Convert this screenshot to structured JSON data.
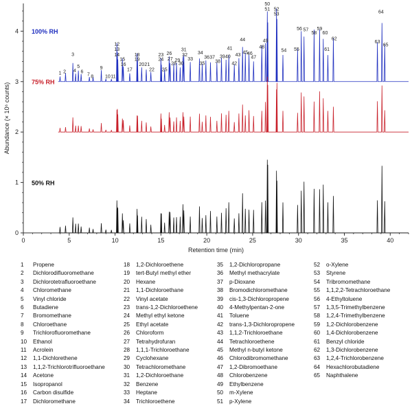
{
  "chart_data": {
    "type": "line",
    "title": "",
    "xlabel": "Retention time (min)",
    "ylabel": "Abundance (× 10⁶ counts)",
    "xlim": [
      0,
      42
    ],
    "ylim": [
      0,
      4.55
    ],
    "x_ticks": [
      0,
      5,
      10,
      15,
      20,
      25,
      30,
      35,
      40
    ],
    "y_ticks": [
      0,
      1,
      2,
      3,
      4
    ],
    "series": [
      {
        "name": "100% RH",
        "color": "#1f2fbf",
        "baseline": 3.0
      },
      {
        "name": "75% RH",
        "color": "#c8202a",
        "baseline": 2.0
      },
      {
        "name": "50% RH",
        "color": "#111111",
        "baseline": 0.0
      }
    ],
    "peaks": [
      {
        "id": "1",
        "t": 4.0,
        "h": 0.12,
        "lx": 4.0,
        "ly": 3.14
      },
      {
        "id": "2",
        "t": 4.6,
        "h": 0.16,
        "lx": 4.5,
        "ly": 3.17
      },
      {
        "id": "3",
        "t": 5.4,
        "h": 0.38,
        "lx": 5.4,
        "ly": 3.51
      },
      {
        "id": "4",
        "t": 5.7,
        "h": 0.18,
        "lx": 5.6,
        "ly": 3.19
      },
      {
        "id": "5",
        "t": 6.0,
        "h": 0.2,
        "lx": 6.0,
        "ly": 3.27
      },
      {
        "id": "6",
        "t": 6.3,
        "h": 0.15,
        "lx": 6.4,
        "ly": 3.17
      },
      {
        "id": "7",
        "t": 7.2,
        "h": 0.1,
        "lx": 7.1,
        "ly": 3.11
      },
      {
        "id": "8",
        "t": 7.6,
        "h": 0.08,
        "lx": 7.5,
        "ly": 3.07
      },
      {
        "id": "9",
        "t": 8.5,
        "h": 0.22,
        "lx": 8.5,
        "ly": 3.24
      },
      {
        "id": "10",
        "t": 9.0,
        "h": 0.06,
        "lx": 9.2,
        "ly": 3.07
      },
      {
        "id": "11",
        "t": 9.6,
        "h": 0.06,
        "lx": 9.8,
        "ly": 3.07
      },
      {
        "id": "12",
        "t": 10.2,
        "h": 0.72,
        "lx": 10.2,
        "ly": 3.71
      },
      {
        "id": "13",
        "t": 10.25,
        "h": 0.6,
        "lx": 10.2,
        "ly": 3.61
      },
      {
        "id": "14",
        "t": 10.3,
        "h": 0.5,
        "lx": 10.2,
        "ly": 3.5
      },
      {
        "id": "15",
        "t": 10.8,
        "h": 0.42,
        "lx": 10.8,
        "ly": 3.41
      },
      {
        "id": "16",
        "t": 10.9,
        "h": 0.3,
        "lx": 10.9,
        "ly": 3.31
      },
      {
        "id": "17",
        "t": 11.6,
        "h": 0.18,
        "lx": 11.6,
        "ly": 3.21
      },
      {
        "id": "18",
        "t": 12.4,
        "h": 0.5,
        "lx": 12.4,
        "ly": 3.5
      },
      {
        "id": "19",
        "t": 12.45,
        "h": 0.4,
        "lx": 12.4,
        "ly": 3.41
      },
      {
        "id": "20",
        "t": 12.9,
        "h": 0.3,
        "lx": 12.9,
        "ly": 3.31
      },
      {
        "id": "21",
        "t": 13.4,
        "h": 0.28,
        "lx": 13.5,
        "ly": 3.31
      },
      {
        "id": "22",
        "t": 13.9,
        "h": 0.18,
        "lx": 14.0,
        "ly": 3.21
      },
      {
        "id": "23",
        "t": 15.0,
        "h": 0.48,
        "lx": 15.0,
        "ly": 3.5
      },
      {
        "id": "24",
        "t": 15.05,
        "h": 0.38,
        "lx": 15.0,
        "ly": 3.41
      },
      {
        "id": "25",
        "t": 15.4,
        "h": 0.22,
        "lx": 15.4,
        "ly": 3.21
      },
      {
        "id": "26",
        "t": 15.9,
        "h": 0.5,
        "lx": 15.9,
        "ly": 3.53
      },
      {
        "id": "27",
        "t": 16.0,
        "h": 0.4,
        "lx": 16.0,
        "ly": 3.42
      },
      {
        "id": "28",
        "t": 16.4,
        "h": 0.32,
        "lx": 16.4,
        "ly": 3.33
      },
      {
        "id": "29",
        "t": 16.7,
        "h": 0.36,
        "lx": 16.8,
        "ly": 3.39
      },
      {
        "id": "30",
        "t": 17.1,
        "h": 0.3,
        "lx": 17.2,
        "ly": 3.33
      },
      {
        "id": "31",
        "t": 17.4,
        "h": 0.58,
        "lx": 17.5,
        "ly": 3.6
      },
      {
        "id": "32",
        "t": 17.5,
        "h": 0.5,
        "lx": 17.6,
        "ly": 3.5
      },
      {
        "id": "33",
        "t": 18.2,
        "h": 0.4,
        "lx": 18.2,
        "ly": 3.42
      },
      {
        "id": "34",
        "t": 19.2,
        "h": 0.52,
        "lx": 19.3,
        "ly": 3.54
      },
      {
        "id": "35",
        "t": 19.5,
        "h": 0.32,
        "lx": 19.5,
        "ly": 3.33
      },
      {
        "id": "36",
        "t": 19.9,
        "h": 0.42,
        "lx": 20.0,
        "ly": 3.45
      },
      {
        "id": "37",
        "t": 20.4,
        "h": 0.42,
        "lx": 20.6,
        "ly": 3.45
      },
      {
        "id": "38",
        "t": 21.1,
        "h": 0.34,
        "lx": 21.2,
        "ly": 3.37
      },
      {
        "id": "39",
        "t": 21.6,
        "h": 0.46,
        "lx": 21.7,
        "ly": 3.47
      },
      {
        "id": "40",
        "t": 22.1,
        "h": 0.46,
        "lx": 22.3,
        "ly": 3.47
      },
      {
        "id": "41",
        "t": 22.4,
        "h": 0.62,
        "lx": 22.5,
        "ly": 3.63
      },
      {
        "id": "42",
        "t": 23.0,
        "h": 0.32,
        "lx": 23.0,
        "ly": 3.33
      },
      {
        "id": "43",
        "t": 23.5,
        "h": 0.48,
        "lx": 23.4,
        "ly": 3.5
      },
      {
        "id": "44",
        "t": 23.9,
        "h": 0.78,
        "lx": 23.9,
        "ly": 3.8
      },
      {
        "id": "45",
        "t": 24.2,
        "h": 0.52,
        "lx": 24.2,
        "ly": 3.55
      },
      {
        "id": "46",
        "t": 24.6,
        "h": 0.55,
        "lx": 24.7,
        "ly": 3.53
      },
      {
        "id": "47",
        "t": 25.1,
        "h": 0.44,
        "lx": 25.1,
        "ly": 3.45
      },
      {
        "id": "48",
        "t": 26.0,
        "h": 0.64,
        "lx": 26.0,
        "ly": 3.66
      },
      {
        "id": "49",
        "t": 26.4,
        "h": 0.74,
        "lx": 26.4,
        "ly": 3.78
      },
      {
        "id": "50",
        "t": 26.6,
        "h": 1.48,
        "lx": 26.6,
        "ly": 4.51
      },
      {
        "id": "51",
        "t": 26.65,
        "h": 1.38,
        "lx": 26.6,
        "ly": 4.41
      },
      {
        "id": "52",
        "t": 27.6,
        "h": 1.38,
        "lx": 27.6,
        "ly": 4.41
      },
      {
        "id": "53",
        "t": 27.65,
        "h": 1.28,
        "lx": 27.6,
        "ly": 4.31
      },
      {
        "id": "54",
        "t": 28.3,
        "h": 0.6,
        "lx": 28.4,
        "ly": 3.59
      },
      {
        "id": "55",
        "t": 29.9,
        "h": 0.6,
        "lx": 29.8,
        "ly": 3.61
      },
      {
        "id": "56",
        "t": 30.3,
        "h": 1.0,
        "lx": 30.1,
        "ly": 4.02
      },
      {
        "id": "57",
        "t": 30.6,
        "h": 0.98,
        "lx": 30.8,
        "ly": 4.0
      },
      {
        "id": "58",
        "t": 31.7,
        "h": 0.92,
        "lx": 31.7,
        "ly": 3.94
      },
      {
        "id": "59",
        "t": 32.3,
        "h": 1.0,
        "lx": 32.3,
        "ly": 4.02
      },
      {
        "id": "60",
        "t": 32.7,
        "h": 0.9,
        "lx": 32.9,
        "ly": 3.94
      },
      {
        "id": "61",
        "t": 33.2,
        "h": 0.62,
        "lx": 33.1,
        "ly": 3.61
      },
      {
        "id": "62",
        "t": 33.8,
        "h": 0.82,
        "lx": 33.9,
        "ly": 3.82
      },
      {
        "id": "63",
        "t": 38.6,
        "h": 0.8,
        "lx": 38.6,
        "ly": 3.76
      },
      {
        "id": "64",
        "t": 39.1,
        "h": 1.32,
        "lx": 39.0,
        "ly": 4.35
      },
      {
        "id": "65",
        "t": 39.4,
        "h": 0.68,
        "lx": 39.5,
        "ly": 3.7
      }
    ],
    "legend_columns": [
      [
        "Propene",
        "Dichlorodifluoromethane",
        "Dichlorotetrafluoroethane",
        "Chloromethane",
        "Vinyl chloride",
        "Butadiene",
        "Bromomethane",
        "Chloroethane",
        "Trichlorofluoromethane",
        "Ethanol",
        "Acrolein",
        "1,1-Dichlorethene",
        "1,1,2-Trichlorotrifluoroethane",
        "Acetone",
        "Isopropanol",
        "Carbon disulfide",
        "Dichloromethane"
      ],
      [
        "1,2-Dichloroethene",
        "tert-Butyl methyl ether",
        "Hexane",
        "1,1-Dichloroethane",
        "Vinyl acetate",
        "trans-1,2-Dichloroethene",
        "Methyl ethyl ketone",
        "Ethyl acetate",
        "Chloroform",
        "Tetrahydrofuran",
        "1,1,1-Trichloroethane",
        "Cyclohexane",
        "Tetrachloromethane",
        "1,2-Dichloroethane",
        "Benzene",
        "Heptane",
        "Trichloroethene"
      ],
      [
        "1,2-Dichloropropane",
        "Methyl methacrylate",
        "p-Dioxane",
        "Bromodichloromethane",
        "cis-1,3-Dichloropropene",
        "4-Methylpentan-2-one",
        "Toluene",
        "trans-1,3-Dichloropropene",
        "1,1,2-Trichloroethane",
        "Tetrachloroethene",
        "Methyl n-butyl ketone",
        "Chlorodibromomethane",
        "1,2-Dibromoethane",
        "Chlorobenzene",
        "Ethylbenzene",
        "m-Xylene",
        "p-Xylene"
      ],
      [
        "o-Xylene",
        "Styrene",
        "Tribromomethane",
        "1,1,2,2-Tetrachloroethane",
        "4-Ethyltoluene",
        "1,3,5-Trimethylbenzene",
        "1,2,4-Trimethylbenzene",
        "1,2-Dichlorobenzene",
        "1,4-Dichlorobenzene",
        "Benzyl chloride",
        "1,3-Dichlorobenzene",
        "1,2,4-Trichlorobenzene",
        "Hexachlorobutadiene",
        "Naphthalene"
      ]
    ]
  }
}
